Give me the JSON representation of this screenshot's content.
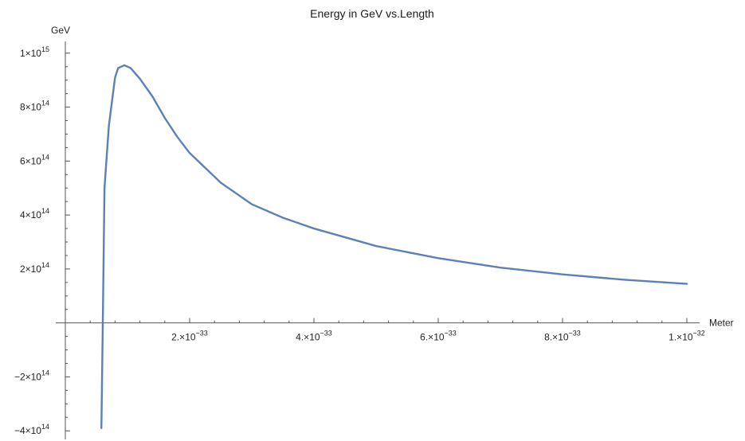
{
  "chart_data": {
    "type": "line",
    "title": "Energy in GeV vs.Length",
    "xlabel": "Meter",
    "ylabel": "GeV",
    "xlim": [
      0,
      1e-32
    ],
    "ylim": [
      -420000000000000.0,
      1020000000000000.0
    ],
    "colors": {
      "series": "#5e81b5",
      "axis": "#555555"
    },
    "x_ticks": [
      {
        "value": 2e-33,
        "mant": "2.×10",
        "exp": "−33"
      },
      {
        "value": 4e-33,
        "mant": "4.×10",
        "exp": "−33"
      },
      {
        "value": 6e-33,
        "mant": "6.×10",
        "exp": "−33"
      },
      {
        "value": 8e-33,
        "mant": "8.×10",
        "exp": "−33"
      },
      {
        "value": 1e-32,
        "mant": "1.×10",
        "exp": "−32"
      }
    ],
    "y_ticks": [
      {
        "value": -400000000000000.0,
        "mant": "−4×10",
        "exp": "14"
      },
      {
        "value": -200000000000000.0,
        "mant": "−2×10",
        "exp": "14"
      },
      {
        "value": 200000000000000.0,
        "mant": "2×10",
        "exp": "14"
      },
      {
        "value": 400000000000000.0,
        "mant": "4×10",
        "exp": "14"
      },
      {
        "value": 600000000000000.0,
        "mant": "6×10",
        "exp": "14"
      },
      {
        "value": 800000000000000.0,
        "mant": "8×10",
        "exp": "14"
      },
      {
        "value": 1000000000000000.0,
        "mant": "1×10",
        "exp": "15"
      }
    ],
    "series": [
      {
        "x": [
          5.8e-34,
          6e-34,
          6.3e-34,
          7e-34,
          8e-34,
          8.5e-34,
          9.5e-34,
          1.05e-33,
          1.2e-33,
          1.4e-33,
          1.6e-33,
          1.8e-33,
          2e-33,
          2.5e-33,
          3e-33,
          3.5e-33,
          4e-33,
          5e-33,
          6e-33,
          7e-33,
          8e-33,
          9e-33,
          1e-32
        ],
        "y": [
          -390000000000000.0,
          -50000000000000.0,
          500000000000000.0,
          730000000000000.0,
          910000000000000.0,
          945000000000000.0,
          955000000000000.0,
          945000000000000.0,
          905000000000000.0,
          840000000000000.0,
          760000000000000.0,
          690000000000000.0,
          630000000000000.0,
          520000000000000.0,
          440000000000000.0,
          390000000000000.0,
          350000000000000.0,
          285000000000000.0,
          240000000000000.0,
          205000000000000.0,
          180000000000000.0,
          160000000000000.0,
          145000000000000.0
        ]
      }
    ]
  }
}
